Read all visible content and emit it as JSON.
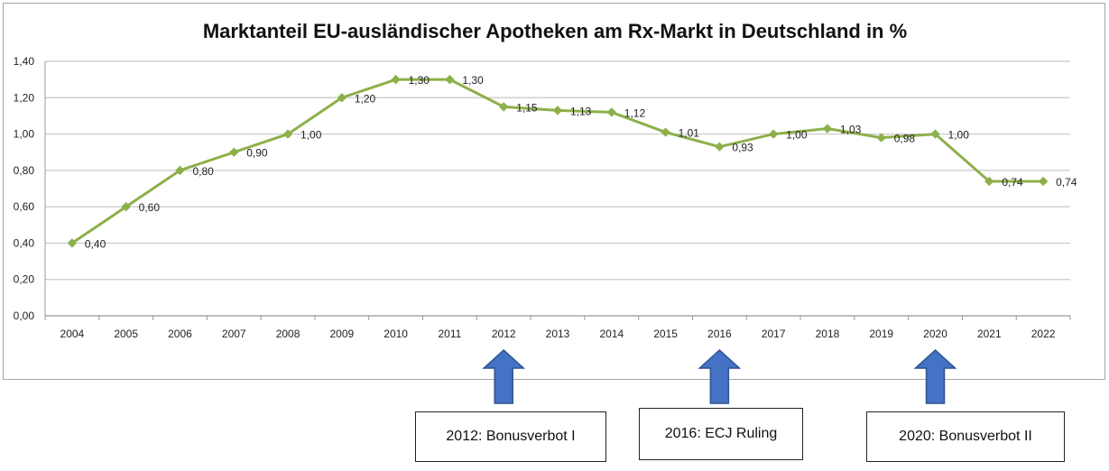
{
  "chart_data": {
    "type": "line",
    "title": "Marktanteil EU-ausländischer Apotheken am Rx-Markt in Deutschland in %",
    "xlabel": "",
    "ylabel": "",
    "ylim": [
      0,
      1.4
    ],
    "yticks": [
      "0,00",
      "0,20",
      "0,40",
      "0,60",
      "0,80",
      "1,00",
      "1,20",
      "1,40"
    ],
    "ytick_values": [
      0,
      0.2,
      0.4,
      0.6,
      0.8,
      1.0,
      1.2,
      1.4
    ],
    "categories": [
      "2004",
      "2005",
      "2006",
      "2007",
      "2008",
      "2009",
      "2010",
      "2011",
      "2012",
      "2013",
      "2014",
      "2015",
      "2016",
      "2017",
      "2018",
      "2019",
      "2020",
      "2021",
      "2022"
    ],
    "series": [
      {
        "values": [
          0.4,
          0.6,
          0.8,
          0.9,
          1.0,
          1.2,
          1.3,
          1.3,
          1.15,
          1.13,
          1.12,
          1.01,
          0.93,
          1.0,
          1.03,
          0.98,
          1.0,
          0.74,
          0.74
        ],
        "labels": [
          "0,40",
          "0,60",
          "0,80",
          "0,90",
          "1,00",
          "1,20",
          "1,30",
          "1,30",
          "1,15",
          "1,13",
          "1,12",
          "1,01",
          "0,93",
          "1,00",
          "1,03",
          "0,98",
          "1,00",
          "0,74",
          "0,74"
        ],
        "color": "#8db04a"
      }
    ],
    "grid": true,
    "legend": "none"
  },
  "annotations": [
    {
      "year": "2012",
      "text": "2012: Bonusverbot I"
    },
    {
      "year": "2016",
      "text": "2016: ECJ Ruling"
    },
    {
      "year": "2020",
      "text": "2020: Bonusverbot II"
    }
  ],
  "colors": {
    "line": "#8db04a",
    "grid": "#c8c8c8",
    "arrow": "#4472c4",
    "arrow_stroke": "#2f528f"
  }
}
